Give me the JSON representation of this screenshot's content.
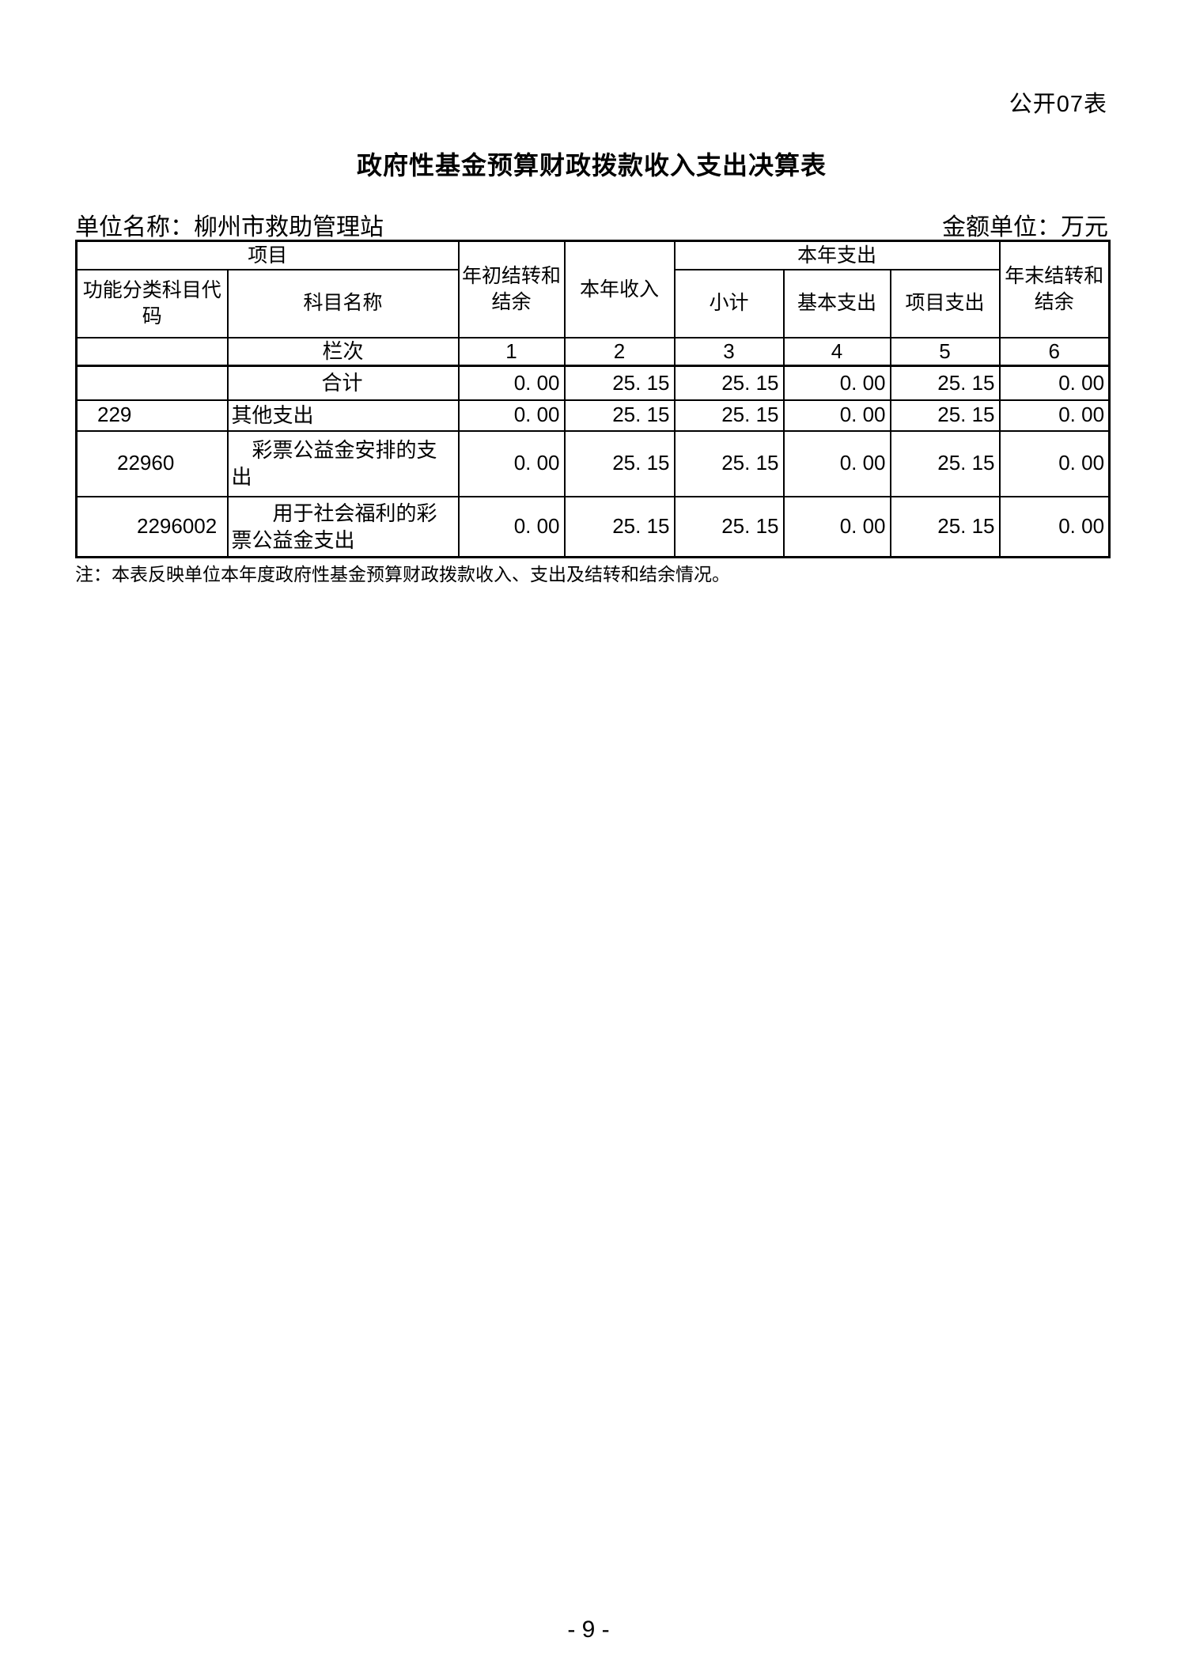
{
  "page": {
    "corner_label": "公开07表",
    "title": "政府性基金预算财政拨款收入支出决算表",
    "unit_name": "单位名称：柳州市救助管理站",
    "amount_unit": "金额单位：万元",
    "note": "注：本表反映单位本年度政府性基金预算财政拨款收入、支出及结转和结余情况。",
    "page_number": "- 9 -"
  },
  "table": {
    "header": {
      "project": "项目",
      "code": "功能分类科目代\n码",
      "subject_name": "科目名称",
      "begin_balance": "年初结转和\n结余",
      "income": "本年收入",
      "expense": "本年支出",
      "subtotal": "小计",
      "basic_expense": "基本支出",
      "project_expense": "项目支出",
      "end_balance": "年末结转和\n结余"
    },
    "lanci_label": "栏次",
    "column_numbers": [
      "1",
      "2",
      "3",
      "4",
      "5",
      "6"
    ],
    "rows": [
      {
        "code": "",
        "level": 0,
        "name": "合计",
        "values": [
          "0. 00",
          "25. 15",
          "25. 15",
          "0. 00",
          "25. 15",
          "0. 00"
        ]
      },
      {
        "code": "229",
        "level": 1,
        "name": "其他支出",
        "values": [
          "0. 00",
          "25. 15",
          "25. 15",
          "0. 00",
          "25. 15",
          "0. 00"
        ]
      },
      {
        "code": "22960",
        "level": 2,
        "name": "　彩票公益金安排的支出",
        "values": [
          "0. 00",
          "25. 15",
          "25. 15",
          "0. 00",
          "25. 15",
          "0. 00"
        ]
      },
      {
        "code": "2296002",
        "level": 3,
        "name": "　　用于社会福利的彩票公益金支出",
        "values": [
          "0. 00",
          "25. 15",
          "25. 15",
          "0. 00",
          "25. 15",
          "0. 00"
        ]
      }
    ]
  }
}
